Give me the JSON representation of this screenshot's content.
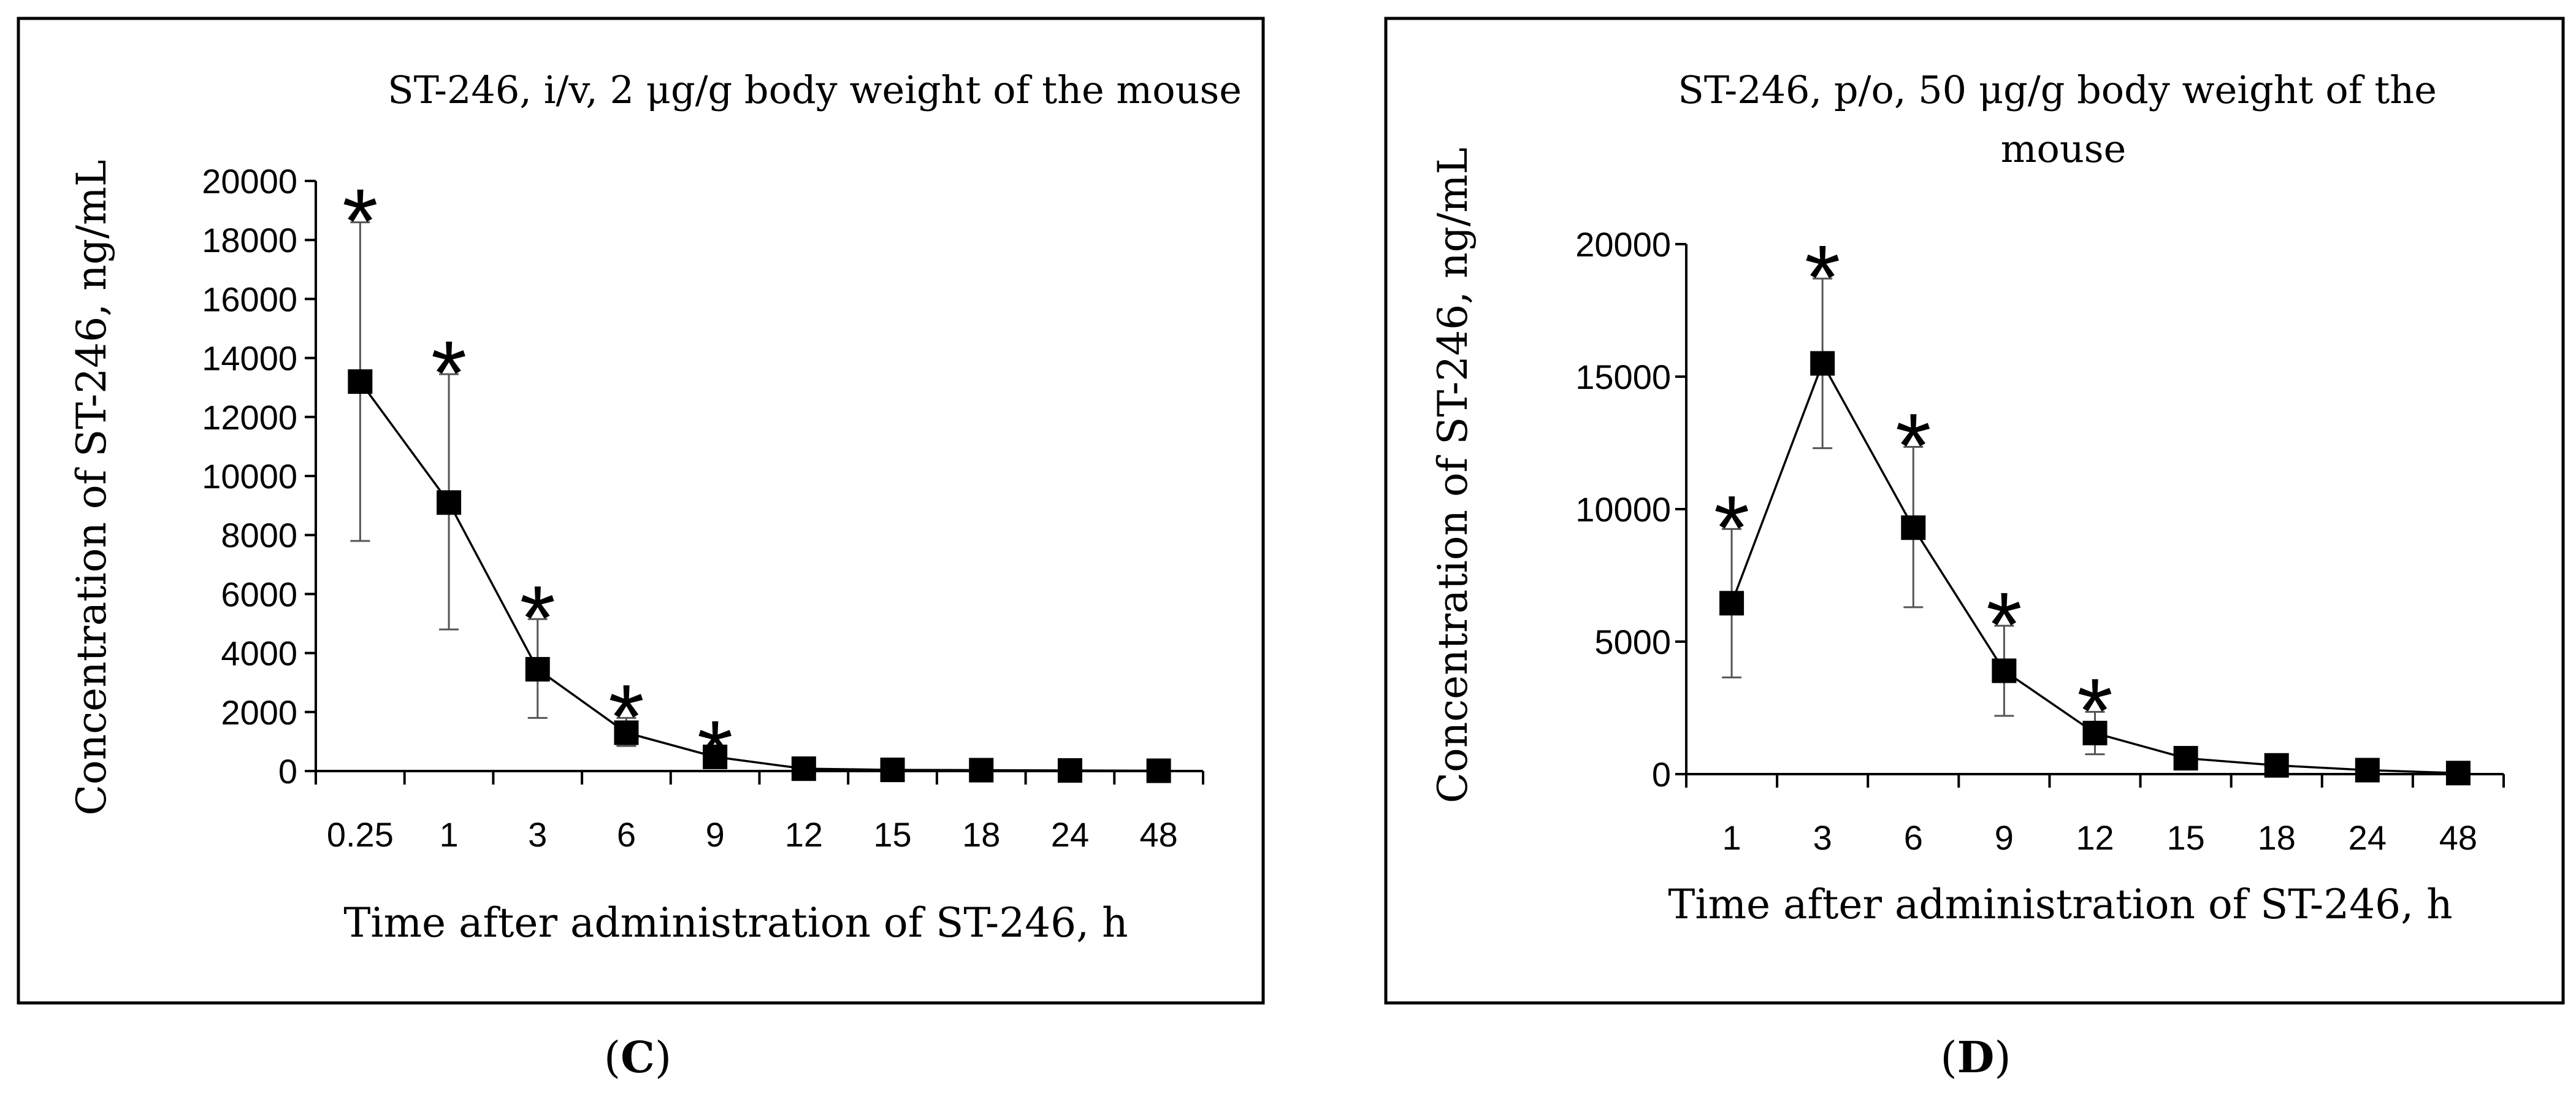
{
  "chart_data": [
    {
      "type": "line",
      "title": "ST-246, i/v, 2 μg/g body weight of the mouse",
      "xlabel": "Time after administration of ST-246, h",
      "ylabel": "Concentration of ST-246, ng/mL",
      "categories": [
        "0.25",
        "1",
        "3",
        "6",
        "9",
        "12",
        "15",
        "18",
        "24",
        "48"
      ],
      "values": [
        13200,
        9100,
        3450,
        1300,
        480,
        80,
        40,
        30,
        20,
        10
      ],
      "error_low": [
        7800,
        4800,
        1800,
        850,
        380,
        60,
        30,
        25,
        15,
        8
      ],
      "error_high": [
        18600,
        13450,
        5150,
        1800,
        580,
        100,
        50,
        35,
        25,
        12
      ],
      "significant": [
        true,
        true,
        true,
        true,
        true,
        false,
        false,
        false,
        false,
        false
      ],
      "significance_marker": "*",
      "ylim": [
        0,
        20000
      ],
      "yticks": [
        "0",
        "2000",
        "4000",
        "6000",
        "8000",
        "10000",
        "12000",
        "14000",
        "16000",
        "18000",
        "20000"
      ],
      "caption": "C"
    },
    {
      "type": "line",
      "title": "ST-246, p/o, 50 μg/g body weight of the mouse",
      "xlabel": "Time after administration of ST-246, h",
      "ylabel": "Concentration of ST-246, ng/mL",
      "categories": [
        "1",
        "3",
        "6",
        "9",
        "12",
        "15",
        "18",
        "24",
        "48"
      ],
      "values": [
        6450,
        15500,
        9300,
        3900,
        1550,
        600,
        330,
        150,
        40
      ],
      "error_low": [
        3650,
        12300,
        6300,
        2200,
        750,
        500,
        250,
        100,
        20
      ],
      "error_high": [
        9250,
        18700,
        12350,
        5600,
        2350,
        700,
        410,
        200,
        60
      ],
      "significant": [
        true,
        true,
        true,
        true,
        true,
        false,
        false,
        false,
        false
      ],
      "significance_marker": "*",
      "ylim": [
        0,
        20000
      ],
      "yticks": [
        "0",
        "5000",
        "10000",
        "15000",
        "20000"
      ],
      "caption": "D"
    }
  ]
}
